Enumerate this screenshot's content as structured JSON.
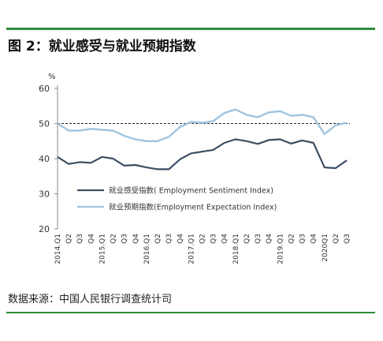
{
  "figure": {
    "title": "图 2：就业感受与就业预期指数",
    "source": "数据来源：中国人民银行调查统计司"
  },
  "chart_data": {
    "type": "line",
    "unit": "%",
    "ylim": [
      20,
      60
    ],
    "yticks": [
      20,
      30,
      40,
      50,
      60
    ],
    "reference_line": 50,
    "x": [
      "2014.Q1",
      "Q2",
      "Q3",
      "Q4",
      "2015.Q1",
      "Q2",
      "Q3",
      "Q4",
      "2016.Q1",
      "Q2",
      "Q3",
      "Q4",
      "2017.Q1",
      "Q2",
      "Q3",
      "Q4",
      "2018.Q1",
      "Q2",
      "Q3",
      "Q4",
      "2019.Q1",
      "Q2",
      "Q3",
      "Q4",
      "2020Q1",
      "Q2",
      "Q3"
    ],
    "legend_position": "center-left",
    "series": [
      {
        "name": "就业感受指数( Employment Sentiment Index)",
        "color": "#3d4f63",
        "values": [
          40.5,
          38.5,
          39.0,
          38.8,
          40.5,
          40.0,
          38.0,
          38.2,
          37.5,
          37.0,
          37.0,
          39.8,
          41.5,
          42.0,
          42.5,
          44.5,
          45.5,
          45.0,
          44.2,
          45.3,
          45.5,
          44.3,
          45.2,
          44.5,
          37.5,
          37.3,
          39.5
        ]
      },
      {
        "name": "就业预期指数(Employment Expectation Index)",
        "color": "#9ec4e0",
        "values": [
          50.0,
          48.0,
          48.0,
          48.5,
          48.2,
          48.0,
          46.5,
          45.5,
          45.0,
          45.0,
          46.2,
          49.0,
          50.5,
          50.2,
          50.7,
          53.0,
          54.0,
          52.5,
          51.8,
          53.2,
          53.5,
          52.2,
          52.5,
          51.8,
          47.0,
          49.5,
          50.2
        ]
      }
    ]
  }
}
